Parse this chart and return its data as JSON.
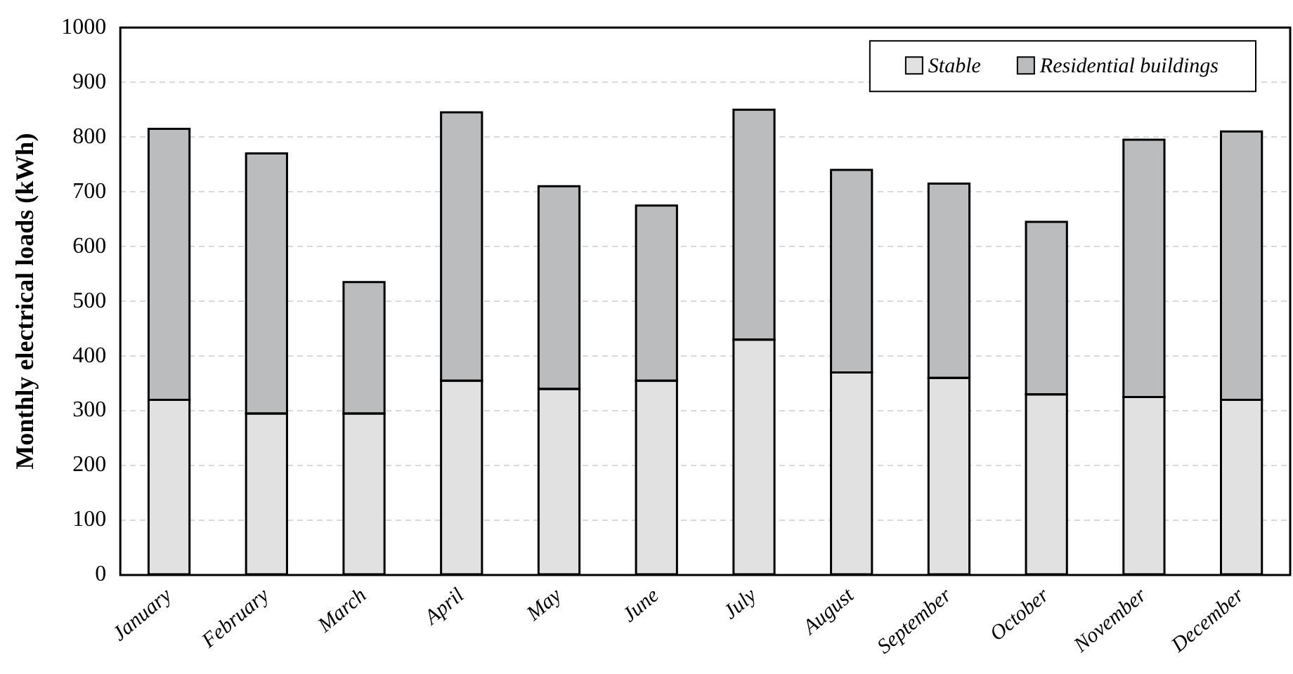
{
  "chart_data": {
    "type": "bar",
    "stacked": true,
    "ylabel": "Monthly electrical loads (kWh)",
    "categories": [
      "January",
      "February",
      "March",
      "April",
      "May",
      "June",
      "July",
      "August",
      "September",
      "October",
      "November",
      "December"
    ],
    "series": [
      {
        "name": "Stable",
        "color": "#e1e1e1",
        "values": [
          320,
          295,
          295,
          355,
          340,
          355,
          430,
          370,
          360,
          330,
          325,
          320
        ]
      },
      {
        "name": "Residential buildings",
        "color": "#bbbcbe",
        "values": [
          495,
          475,
          240,
          490,
          370,
          320,
          420,
          370,
          355,
          315,
          470,
          490
        ]
      }
    ],
    "ylim": [
      0,
      1000
    ],
    "yticks": [
      0,
      100,
      200,
      300,
      400,
      500,
      600,
      700,
      800,
      900,
      1000
    ],
    "grid": "y",
    "legend": "top right"
  }
}
